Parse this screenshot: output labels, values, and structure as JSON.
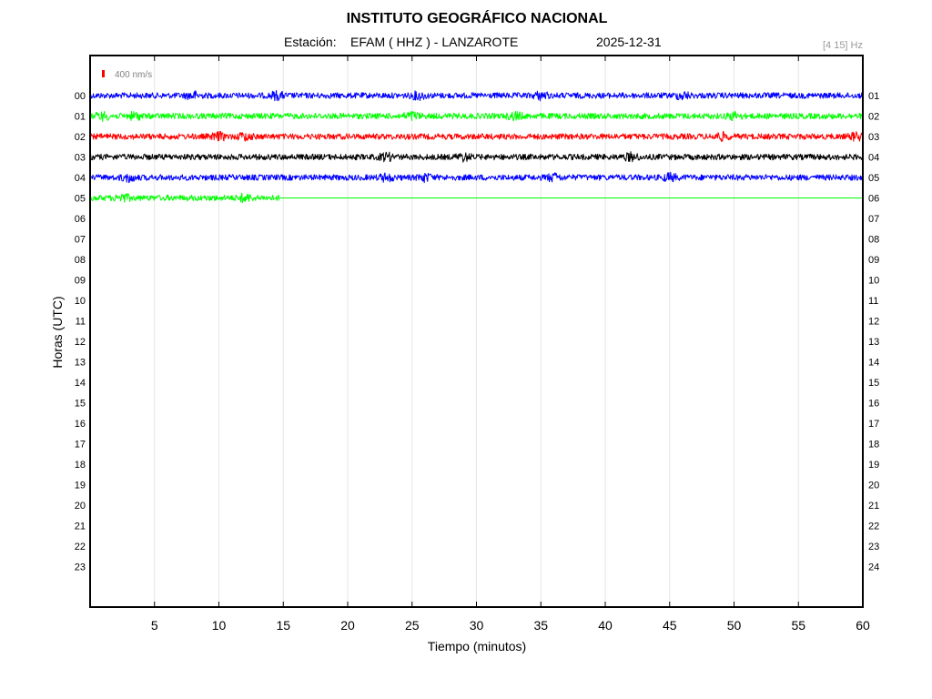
{
  "title": "INSTITUTO GEOGRÁFICO NACIONAL",
  "station_prefix": "Estación:",
  "station": "EFAM ( HHZ ) - LANZAROTE",
  "date": "2025-12-31",
  "filter": "[4 15] Hz",
  "scale_label": "400 nm/s",
  "colors": {
    "scale_bar": "#ff0000",
    "grid": "#e6e6e6",
    "axes": "#000000"
  },
  "chart_data": {
    "type": "line",
    "title": "INSTITUTO GEOGRÁFICO NACIONAL",
    "xlabel": "Tiempo (minutos)",
    "ylabel": "Horas (UTC)",
    "xlim": [
      0,
      60
    ],
    "x_ticks": [
      "5",
      "10",
      "15",
      "20",
      "25",
      "30",
      "35",
      "40",
      "45",
      "50",
      "55",
      "60"
    ],
    "grid": true,
    "left_hour_labels": [
      "00",
      "01",
      "02",
      "03",
      "04",
      "05",
      "06",
      "07",
      "08",
      "09",
      "10",
      "11",
      "12",
      "13",
      "14",
      "15",
      "16",
      "17",
      "18",
      "19",
      "20",
      "21",
      "22",
      "23"
    ],
    "right_hour_labels": [
      "01",
      "02",
      "03",
      "04",
      "05",
      "06",
      "07",
      "08",
      "09",
      "10",
      "11",
      "12",
      "13",
      "14",
      "15",
      "16",
      "17",
      "18",
      "19",
      "20",
      "21",
      "22",
      "23",
      "24"
    ],
    "series": [
      {
        "hour": "00",
        "color": "#0000ff",
        "data_end_min": 60,
        "bursts_min": [
          8,
          14.5,
          25.5,
          35,
          46
        ]
      },
      {
        "hour": "01",
        "color": "#00ff00",
        "data_end_min": 60,
        "bursts_min": [
          1,
          3.5,
          25,
          33,
          50
        ]
      },
      {
        "hour": "02",
        "color": "#ff0000",
        "data_end_min": 60,
        "bursts_min": [
          10,
          12,
          49,
          59.5
        ]
      },
      {
        "hour": "03",
        "color": "#000000",
        "data_end_min": 60,
        "bursts_min": [
          23,
          29,
          42
        ]
      },
      {
        "hour": "04",
        "color": "#0000ff",
        "data_end_min": 60,
        "bursts_min": [
          3,
          23,
          26,
          36,
          45
        ]
      },
      {
        "hour": "05",
        "color": "#00ff00",
        "data_end_min": 14.7,
        "bursts_min": [
          2.5,
          12
        ]
      }
    ]
  }
}
